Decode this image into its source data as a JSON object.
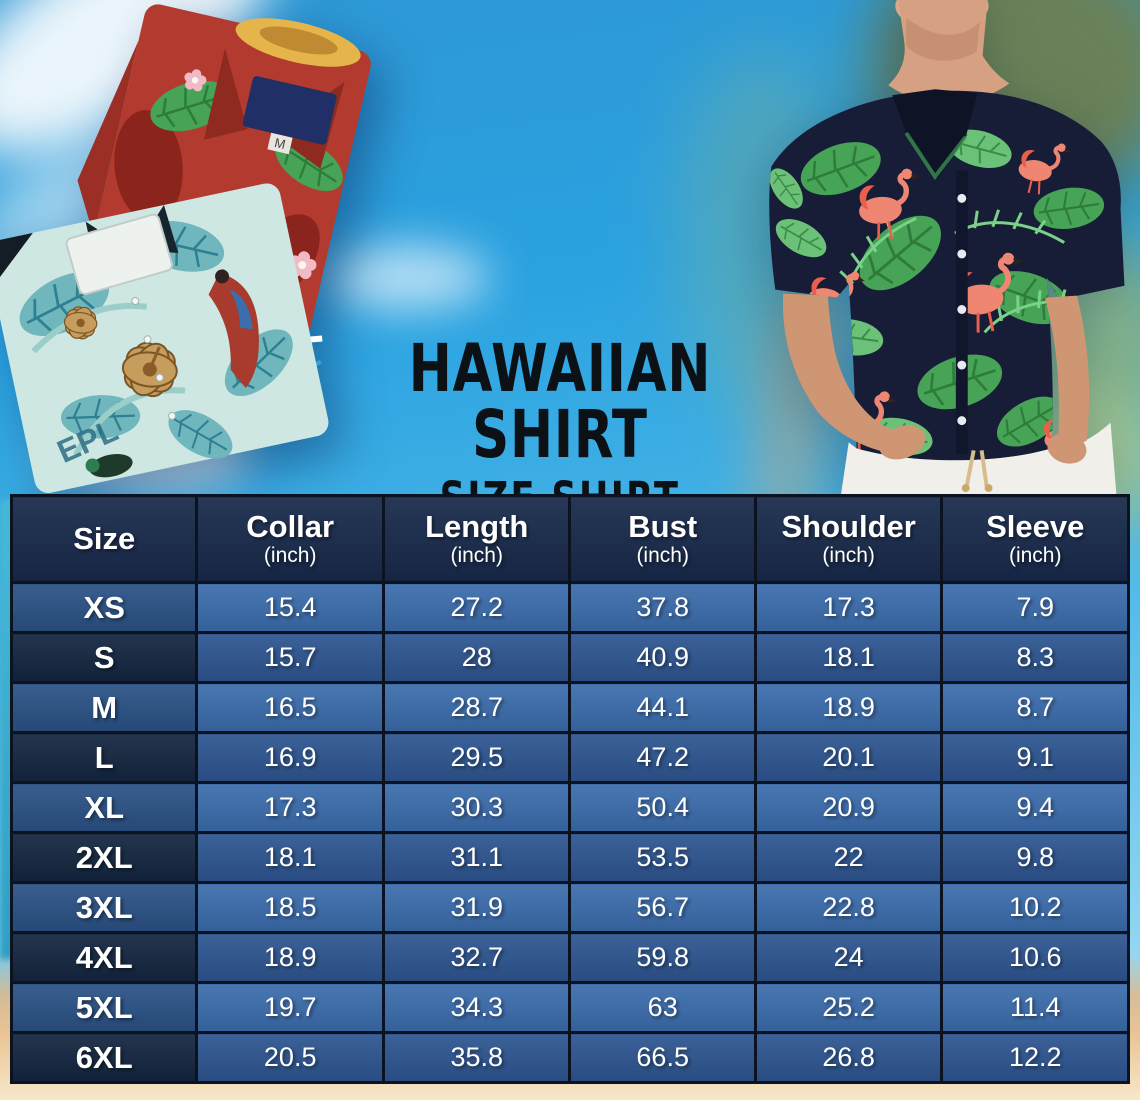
{
  "title": {
    "line1": "HAWAIIAN SHIRT",
    "line2": "SIZE SHIRT"
  },
  "table": {
    "columns": [
      {
        "label": "Size",
        "unit": ""
      },
      {
        "label": "Collar",
        "unit": "(inch)"
      },
      {
        "label": "Length",
        "unit": "(inch)"
      },
      {
        "label": "Bust",
        "unit": "(inch)"
      },
      {
        "label": "Shoulder",
        "unit": "(inch)"
      },
      {
        "label": "Sleeve",
        "unit": "(inch)"
      }
    ]
  },
  "chart_data": {
    "type": "table",
    "title": "Hawaiian Shirt Size Shirt",
    "columns": [
      "Size",
      "Collar (inch)",
      "Length (inch)",
      "Bust (inch)",
      "Shoulder (inch)",
      "Sleeve (inch)"
    ],
    "rows": [
      [
        "XS",
        15.4,
        27.2,
        37.8,
        17.3,
        7.9
      ],
      [
        "S",
        15.7,
        28,
        40.9,
        18.1,
        8.3
      ],
      [
        "M",
        16.5,
        28.7,
        44.1,
        18.9,
        8.7
      ],
      [
        "L",
        16.9,
        29.5,
        47.2,
        20.1,
        9.1
      ],
      [
        "XL",
        17.3,
        30.3,
        50.4,
        20.9,
        9.4
      ],
      [
        "2XL",
        18.1,
        31.1,
        53.5,
        22,
        9.8
      ],
      [
        "3XL",
        18.5,
        31.9,
        56.7,
        22.8,
        10.2
      ],
      [
        "4XL",
        18.9,
        32.7,
        59.8,
        24,
        10.6
      ],
      [
        "5XL",
        19.7,
        34.3,
        63,
        25.2,
        11.4
      ],
      [
        "6XL",
        20.5,
        35.8,
        66.5,
        26.8,
        12.2
      ]
    ]
  },
  "colors": {
    "header_bg": "#17294a",
    "row_bright_label": "#2a5184",
    "row_bright_value": "#3b6cac",
    "row_dark_label": "#13253f",
    "row_dark_value": "#2d5590",
    "table_border": "#0b1220",
    "table_text": "#ffffff",
    "title_text": "#0c1115",
    "sand_dark": "#e9c495",
    "sand_light": "#f7e7c9",
    "sky": "#2aa2e0"
  },
  "illustrations": {
    "left_photo": "Two folded Hawaiian shirts: red tropical print and teal hibiscus print",
    "right_photo": "Man wearing navy flamingo-print Hawaiian shirt and white pants",
    "red_shirt_size_tag": "M",
    "teal_shirt_print_text": "EPL"
  }
}
